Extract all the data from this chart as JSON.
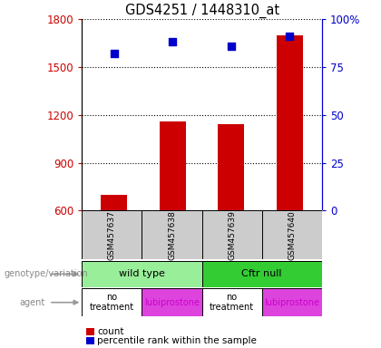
{
  "title": "GDS4251 / 1448310_at",
  "samples": [
    "GSM457637",
    "GSM457638",
    "GSM457639",
    "GSM457640"
  ],
  "counts": [
    700,
    1160,
    1140,
    1700
  ],
  "percentile_ranks": [
    82,
    88,
    86,
    91
  ],
  "ylim_left": [
    600,
    1800
  ],
  "ylim_right": [
    0,
    100
  ],
  "yticks_left": [
    600,
    900,
    1200,
    1500,
    1800
  ],
  "yticks_right": [
    0,
    25,
    50,
    75,
    100
  ],
  "ytick_labels_right": [
    "0",
    "25",
    "50",
    "75",
    "100%"
  ],
  "bar_color": "#cc0000",
  "dot_color": "#0000cc",
  "bar_width": 0.45,
  "genotype_row": [
    {
      "label": "wild type",
      "span": [
        0,
        2
      ],
      "color": "#99ee99"
    },
    {
      "label": "Cftr null",
      "span": [
        2,
        4
      ],
      "color": "#33cc33"
    }
  ],
  "agent_row": [
    {
      "label": "no\ntreatment",
      "span": [
        0,
        1
      ],
      "color": "#ffffff"
    },
    {
      "label": "lubiprostone",
      "span": [
        1,
        2
      ],
      "color": "#dd44dd"
    },
    {
      "label": "no\ntreatment",
      "span": [
        2,
        3
      ],
      "color": "#ffffff"
    },
    {
      "label": "lubiprostone",
      "span": [
        3,
        4
      ],
      "color": "#dd44dd"
    }
  ],
  "agent_text_colors": [
    "#000000",
    "#cc00cc",
    "#000000",
    "#cc00cc"
  ],
  "left_labels": [
    "genotype/variation",
    "agent"
  ],
  "legend_count_color": "#cc0000",
  "legend_pct_color": "#0000cc",
  "legend_count_label": "count",
  "legend_pct_label": "percentile rank within the sample",
  "sample_bg_color": "#cccccc",
  "left_axis_color": "#cc0000",
  "right_axis_color": "#0000cc",
  "arrow_color": "#999999"
}
